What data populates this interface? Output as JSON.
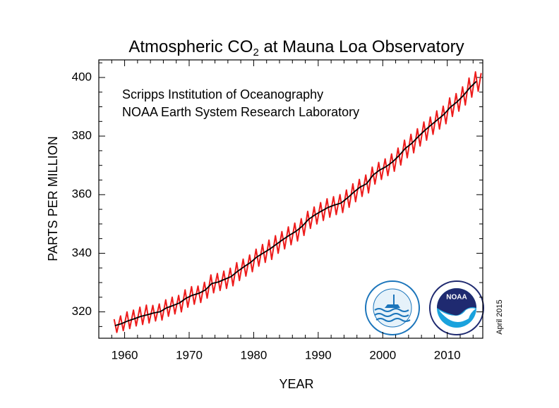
{
  "chart_data": {
    "type": "line",
    "title": [
      "Atmospheric CO",
      "2",
      " at Mauna Loa Observatory"
    ],
    "annotations": [
      "Scripps Institution of Oceanography",
      "NOAA Earth System Research Laboratory"
    ],
    "date_note": "April 2015",
    "logo_text": "NOAA",
    "xlabel": "YEAR",
    "ylabel": "PARTS PER MILLION",
    "xlim": [
      1956,
      2015.5
    ],
    "ylim": [
      311,
      406
    ],
    "xticks": [
      1960,
      1970,
      1980,
      1990,
      2000,
      2010
    ],
    "yticks": [
      320,
      340,
      360,
      380,
      400
    ],
    "xticks_minor": [
      1958,
      1962,
      1964,
      1966,
      1968,
      1972,
      1974,
      1976,
      1978,
      1982,
      1984,
      1986,
      1988,
      1992,
      1994,
      1996,
      1998,
      2002,
      2004,
      2006,
      2008,
      2012,
      2014
    ],
    "yticks_minor": [
      315,
      325,
      330,
      335,
      345,
      350,
      355,
      365,
      370,
      375,
      385,
      390,
      395,
      405
    ],
    "series": [
      {
        "color": "#ee1c1c",
        "x": [
          1958.37,
          1958.79,
          1959.37,
          1959.79,
          1960.37,
          1960.79,
          1961.37,
          1961.79,
          1962.37,
          1962.79,
          1963.37,
          1963.79,
          1964.37,
          1964.79,
          1965.37,
          1965.79,
          1966.37,
          1966.79,
          1967.37,
          1967.79,
          1968.37,
          1968.79,
          1969.37,
          1969.79,
          1970.37,
          1970.79,
          1971.37,
          1971.79,
          1972.37,
          1972.79,
          1973.37,
          1973.79,
          1974.37,
          1974.79,
          1975.37,
          1975.79,
          1976.37,
          1976.79,
          1977.37,
          1977.79,
          1978.37,
          1978.79,
          1979.37,
          1979.79,
          1980.37,
          1980.79,
          1981.37,
          1981.79,
          1982.37,
          1982.79,
          1983.37,
          1983.79,
          1984.37,
          1984.79,
          1985.37,
          1985.79,
          1986.37,
          1986.79,
          1987.37,
          1987.79,
          1988.37,
          1988.79,
          1989.37,
          1989.79,
          1990.37,
          1990.79,
          1991.37,
          1991.79,
          1992.37,
          1992.79,
          1993.37,
          1993.79,
          1994.37,
          1994.79,
          1995.37,
          1995.79,
          1996.37,
          1996.79,
          1997.37,
          1997.79,
          1998.37,
          1998.79,
          1999.37,
          1999.79,
          2000.37,
          2000.79,
          2001.37,
          2001.79,
          2002.37,
          2002.79,
          2003.37,
          2003.79,
          2004.37,
          2004.79,
          2005.37,
          2005.79,
          2006.37,
          2006.79,
          2007.37,
          2007.79,
          2008.37,
          2008.79,
          2009.37,
          2009.79,
          2010.37,
          2010.79,
          2011.37,
          2011.79,
          2012.37,
          2012.79,
          2013.37,
          2013.79,
          2014.37,
          2014.79,
          2015.25
        ],
        "values": [
          317.5,
          313.0,
          318.6,
          313.6,
          320.0,
          314.3,
          320.6,
          315.2,
          321.6,
          315.7,
          322.3,
          316.2,
          322.2,
          316.9,
          322.7,
          317.2,
          324.1,
          318.5,
          325.0,
          319.3,
          325.6,
          320.0,
          327.5,
          321.6,
          328.6,
          322.6,
          328.8,
          323.2,
          330.1,
          324.7,
          332.6,
          326.5,
          333.1,
          327.3,
          333.9,
          328.0,
          334.9,
          328.9,
          336.8,
          330.7,
          338.0,
          332.2,
          339.4,
          333.7,
          341.4,
          335.6,
          343.0,
          336.9,
          344.5,
          337.9,
          346.0,
          340.0,
          347.4,
          341.5,
          349.0,
          342.9,
          350.3,
          344.2,
          351.8,
          346.1,
          354.3,
          348.5,
          355.8,
          350.0,
          357.3,
          351.2,
          358.6,
          352.3,
          359.3,
          353.2,
          360.0,
          353.9,
          361.6,
          355.7,
          363.7,
          357.6,
          365.2,
          359.4,
          366.7,
          360.6,
          369.4,
          363.6,
          371.0,
          365.2,
          372.2,
          366.5,
          373.9,
          368.0,
          375.9,
          370.1,
          378.6,
          372.6,
          380.6,
          374.3,
          382.5,
          376.6,
          384.8,
          378.6,
          386.5,
          380.6,
          388.6,
          382.4,
          390.2,
          384.2,
          393.0,
          386.7,
          394.5,
          388.5,
          396.8,
          390.6,
          399.8,
          393.3,
          401.9,
          395.3,
          401.5
        ]
      },
      {
        "color": "#000000",
        "x": [
          1958.5,
          1959.5,
          1960.5,
          1961.5,
          1962.5,
          1963.5,
          1964.5,
          1965.5,
          1966.5,
          1967.5,
          1968.5,
          1969.5,
          1970.5,
          1971.5,
          1972.5,
          1973.5,
          1974.5,
          1975.5,
          1976.5,
          1977.5,
          1978.5,
          1979.5,
          1980.5,
          1981.5,
          1982.5,
          1983.5,
          1984.5,
          1985.5,
          1986.5,
          1987.5,
          1988.5,
          1989.5,
          1990.5,
          1991.5,
          1992.5,
          1993.5,
          1994.5,
          1995.5,
          1996.5,
          1997.5,
          1998.5,
          1999.5,
          2000.5,
          2001.5,
          2002.5,
          2003.5,
          2004.5,
          2005.5,
          2006.5,
          2007.5,
          2008.5,
          2009.5,
          2010.5,
          2011.5,
          2012.5,
          2013.5,
          2014.5
        ],
        "values": [
          315.3,
          315.97,
          316.91,
          317.64,
          318.45,
          318.99,
          319.62,
          320.04,
          321.38,
          322.16,
          323.04,
          324.62,
          325.68,
          326.32,
          327.45,
          329.68,
          330.18,
          331.11,
          332.04,
          333.83,
          335.4,
          336.84,
          338.75,
          340.11,
          341.45,
          343.05,
          344.65,
          346.12,
          347.42,
          349.19,
          351.57,
          353.12,
          354.39,
          355.61,
          356.45,
          357.1,
          358.83,
          360.82,
          362.61,
          363.73,
          366.7,
          368.38,
          369.55,
          371.14,
          373.28,
          375.8,
          377.52,
          379.8,
          381.9,
          383.79,
          385.6,
          387.43,
          389.9,
          391.65,
          393.85,
          396.52,
          398.65
        ]
      }
    ]
  }
}
